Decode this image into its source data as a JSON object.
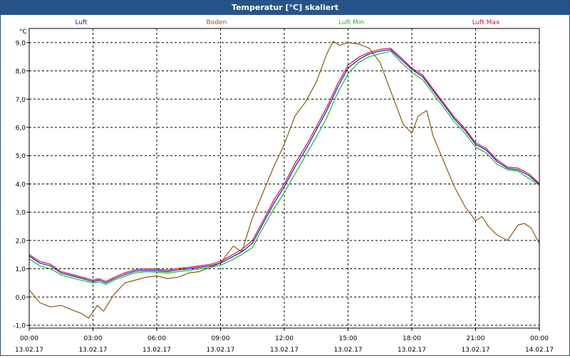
{
  "window": {
    "title": "Temperatur [°C] skaliert"
  },
  "colors": {
    "luft": "#1414c8",
    "boden": "#8a5a14",
    "luft_min": "#1fb81f",
    "luft_max": "#c81434",
    "grid": "#000000",
    "axis": "#000000"
  },
  "chart_data": {
    "type": "line",
    "title": "Temperatur [°C] skaliert",
    "ylabel": "°C",
    "xlabel": "",
    "ylim": [
      -1.1,
      9.5
    ],
    "yticks": [
      -1.0,
      0.0,
      1.0,
      2.0,
      3.0,
      4.0,
      5.0,
      6.0,
      7.0,
      8.0,
      9.0
    ],
    "ytick_labels": [
      "-1,0",
      "0,0",
      "1,0",
      "2,0",
      "3,0",
      "4,0",
      "5,0",
      "6,0",
      "7,0",
      "8,0",
      "9,0"
    ],
    "xlim": [
      0,
      24
    ],
    "xticks": [
      0,
      3,
      6,
      9,
      12,
      15,
      18,
      21,
      24
    ],
    "xtick_time": [
      "00:00",
      "03:00",
      "06:00",
      "09:00",
      "12:00",
      "15:00",
      "18:00",
      "21:00",
      "00:00"
    ],
    "xtick_date": [
      "13.02.17",
      "13.02.17",
      "13.02.17",
      "13.02.17",
      "13.02.17",
      "13.02.17",
      "13.02.17",
      "13.02.17",
      "14.02.17"
    ],
    "grid": true,
    "legend_position": "top",
    "series": [
      {
        "name": "Luft",
        "key": "luft",
        "x": [
          0,
          0.5,
          1,
          1.5,
          2,
          2.5,
          3,
          3.3,
          3.6,
          4,
          4.5,
          5,
          5.5,
          6,
          6.5,
          7,
          7.5,
          8,
          8.5,
          9,
          9.5,
          10,
          10.5,
          11,
          11.5,
          12,
          12.5,
          13,
          13.5,
          14,
          14.5,
          15,
          15.5,
          16,
          16.5,
          17,
          17.5,
          18,
          18.5,
          19,
          19.5,
          20,
          20.5,
          21,
          21.5,
          22,
          22.5,
          23,
          23.5,
          24
        ],
        "y": [
          1.45,
          1.2,
          1.1,
          0.85,
          0.75,
          0.65,
          0.55,
          0.6,
          0.5,
          0.65,
          0.8,
          0.92,
          0.95,
          0.93,
          0.9,
          0.96,
          1.0,
          1.05,
          1.1,
          1.2,
          1.4,
          1.6,
          1.9,
          2.6,
          3.3,
          3.9,
          4.6,
          5.2,
          5.9,
          6.6,
          7.4,
          8.1,
          8.4,
          8.6,
          8.7,
          8.75,
          8.4,
          8.05,
          7.8,
          7.3,
          6.8,
          6.3,
          5.9,
          5.4,
          5.2,
          4.8,
          4.55,
          4.5,
          4.3,
          3.98
        ]
      },
      {
        "name": "Boden",
        "key": "boden",
        "x": [
          0,
          0.5,
          1,
          1.5,
          2,
          2.5,
          2.8,
          3.2,
          3.5,
          4,
          4.5,
          5,
          5.5,
          6,
          6.5,
          7,
          7.5,
          8,
          8.5,
          9,
          9.3,
          9.6,
          10,
          10.5,
          11,
          11.5,
          12,
          12.5,
          13,
          13.5,
          14,
          14.3,
          14.6,
          15,
          15.5,
          16,
          16.5,
          16.8,
          17.2,
          17.6,
          18,
          18.3,
          18.7,
          19,
          19.5,
          20,
          20.5,
          21,
          21.3,
          21.6,
          22,
          22.5,
          23,
          23.3,
          23.6,
          24
        ],
        "y": [
          0.25,
          -0.2,
          -0.35,
          -0.3,
          -0.45,
          -0.6,
          -0.75,
          -0.3,
          -0.5,
          0.1,
          0.5,
          0.6,
          0.7,
          0.75,
          0.65,
          0.7,
          0.85,
          0.9,
          1.05,
          1.2,
          1.5,
          1.8,
          1.6,
          2.8,
          3.7,
          4.6,
          5.4,
          6.4,
          6.9,
          7.6,
          8.6,
          9.05,
          8.9,
          9.0,
          8.95,
          8.8,
          8.3,
          7.7,
          6.9,
          6.1,
          5.8,
          6.4,
          6.6,
          5.7,
          4.8,
          3.9,
          3.2,
          2.7,
          2.85,
          2.5,
          2.2,
          2.0,
          2.55,
          2.6,
          2.45,
          1.9
        ]
      },
      {
        "name": "Luft Min",
        "key": "luft_min",
        "x": [
          0,
          0.5,
          1,
          1.5,
          2,
          2.5,
          3,
          3.3,
          3.6,
          4,
          4.5,
          5,
          5.5,
          6,
          6.5,
          7,
          7.5,
          8,
          8.5,
          9,
          9.5,
          10,
          10.5,
          11,
          11.5,
          12,
          12.5,
          13,
          13.5,
          14,
          14.5,
          15,
          15.5,
          16,
          16.5,
          17,
          17.5,
          18,
          18.5,
          19,
          19.5,
          20,
          20.5,
          21,
          21.5,
          22,
          22.5,
          23,
          23.5,
          24
        ],
        "y": [
          1.35,
          1.1,
          1.0,
          0.78,
          0.68,
          0.58,
          0.5,
          0.54,
          0.44,
          0.6,
          0.74,
          0.86,
          0.9,
          0.88,
          0.84,
          0.9,
          0.94,
          1.0,
          1.04,
          1.12,
          1.3,
          1.5,
          1.75,
          2.45,
          3.1,
          3.7,
          4.35,
          5.0,
          5.65,
          6.35,
          7.2,
          7.9,
          8.3,
          8.5,
          8.6,
          8.7,
          8.3,
          7.95,
          7.7,
          7.2,
          6.7,
          6.2,
          5.8,
          5.3,
          5.1,
          4.7,
          4.5,
          4.45,
          4.2,
          3.95
        ]
      },
      {
        "name": "Luft Max",
        "key": "luft_max",
        "x": [
          0,
          0.5,
          1,
          1.5,
          2,
          2.5,
          3,
          3.3,
          3.6,
          4,
          4.5,
          5,
          5.5,
          6,
          6.5,
          7,
          7.5,
          8,
          8.5,
          9,
          9.5,
          10,
          10.5,
          11,
          11.5,
          12,
          12.5,
          13,
          13.5,
          14,
          14.5,
          15,
          15.5,
          16,
          16.5,
          17,
          17.5,
          18,
          18.5,
          19,
          19.5,
          20,
          20.5,
          21,
          21.5,
          22,
          22.5,
          23,
          23.5,
          24
        ],
        "y": [
          1.5,
          1.26,
          1.16,
          0.9,
          0.8,
          0.7,
          0.6,
          0.65,
          0.55,
          0.7,
          0.86,
          0.97,
          1.0,
          0.98,
          0.95,
          1.01,
          1.05,
          1.1,
          1.15,
          1.26,
          1.47,
          1.68,
          2.0,
          2.7,
          3.42,
          4.0,
          4.72,
          5.32,
          6.02,
          6.72,
          7.52,
          8.2,
          8.48,
          8.66,
          8.76,
          8.8,
          8.46,
          8.1,
          7.86,
          7.36,
          6.86,
          6.36,
          5.96,
          5.46,
          5.26,
          4.86,
          4.6,
          4.56,
          4.36,
          4.02
        ]
      }
    ]
  }
}
